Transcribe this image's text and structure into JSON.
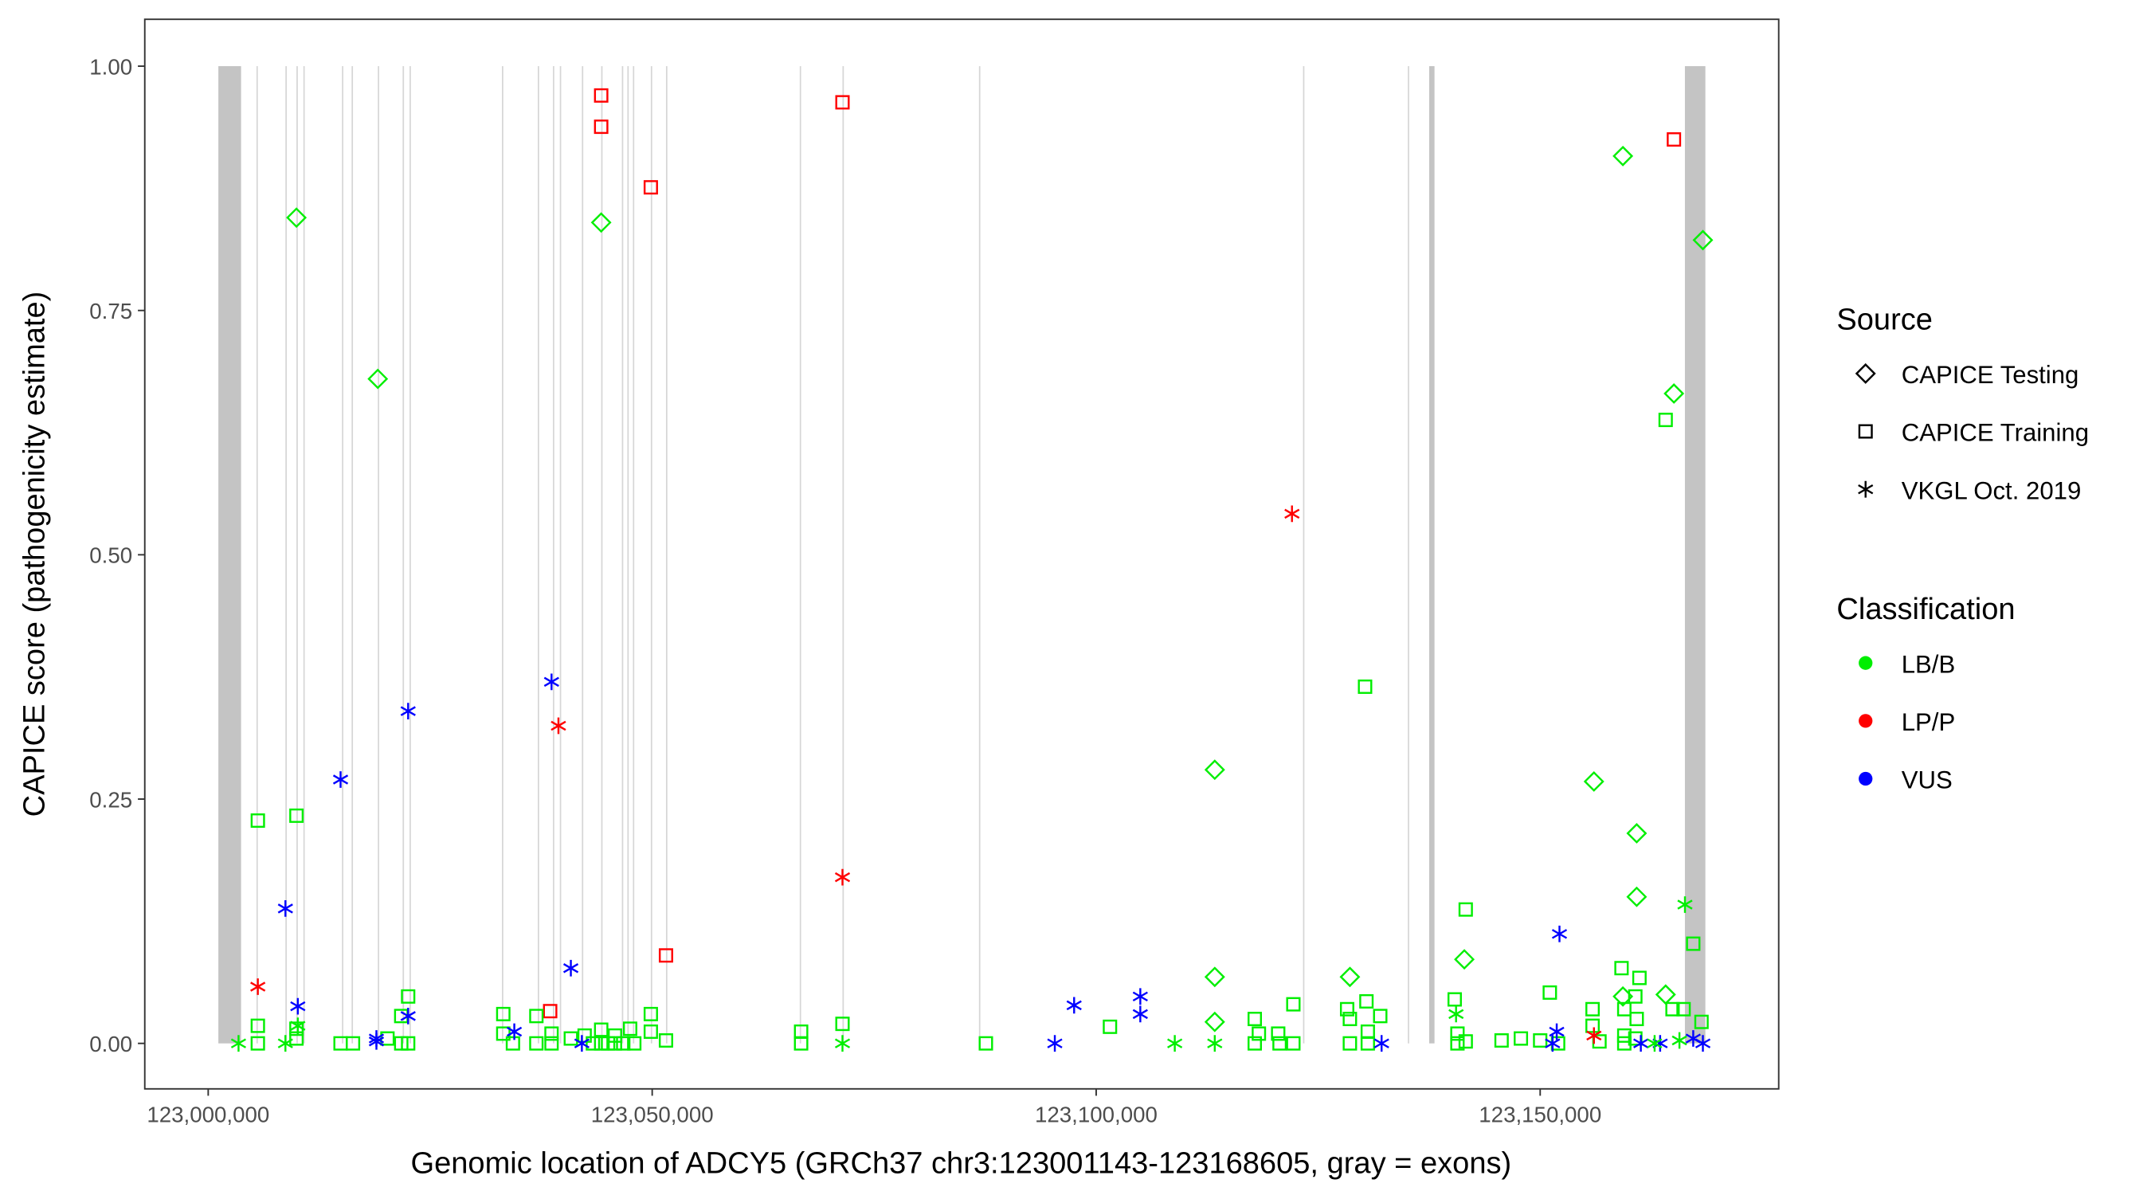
{
  "chart_data": {
    "type": "scatter",
    "xlabel": "Genomic location of ADCY5 (GRCh37 chr3:123001143-123168605, gray = exons)",
    "ylabel": "CAPICE score (pathogenicity estimate)",
    "xlim": [
      122993000,
      123176000
    ],
    "ylim": [
      -0.046,
      1.048
    ],
    "xticks": [
      123000000,
      123050000,
      123100000,
      123150000
    ],
    "xtick_labels": [
      "123,000,000",
      "123,050,000",
      "123,100,000",
      "123,150,000"
    ],
    "yticks": [
      0,
      0.25,
      0.5,
      0.75,
      1.0
    ],
    "ytick_labels": [
      "0.00",
      "0.25",
      "0.50",
      "0.75",
      "1.00"
    ],
    "grid": false,
    "legend": {
      "placement": "right",
      "source_title": "Source",
      "sources": [
        {
          "label": "CAPICE Testing",
          "shape": "diamond"
        },
        {
          "label": "CAPICE Training",
          "shape": "square"
        },
        {
          "label": "VKGL Oct. 2019",
          "shape": "asterisk"
        }
      ],
      "class_title": "Classification",
      "classes": [
        {
          "label": "LB/B",
          "color": "#00EE00"
        },
        {
          "label": "LP/P",
          "color": "#FF0000"
        },
        {
          "label": "VUS",
          "color": "#0000FF"
        }
      ]
    },
    "exon_color": "#C4C4C4",
    "exons": [
      [
        123001143,
        123003700
      ],
      [
        123005435,
        123005550
      ],
      [
        123008696,
        123008800
      ],
      [
        123009938,
        123010040
      ],
      [
        123010714,
        123010820
      ],
      [
        123015062,
        123015160
      ],
      [
        123016149,
        123016250
      ],
      [
        123019099,
        123019200
      ],
      [
        123021894,
        123022000
      ],
      [
        123022671,
        123022780
      ],
      [
        123033075,
        123033180
      ],
      [
        123037112,
        123037220
      ],
      [
        123038820,
        123038930
      ],
      [
        123039596,
        123039700
      ],
      [
        123042081,
        123042190
      ],
      [
        123044255,
        123044360
      ],
      [
        123046584,
        123046690
      ],
      [
        123047205,
        123047310
      ],
      [
        123047826,
        123047930
      ],
      [
        123049845,
        123049950
      ],
      [
        123051553,
        123051660
      ],
      [
        123066615,
        123066720
      ],
      [
        123071429,
        123071530
      ],
      [
        123086801,
        123086900
      ],
      [
        123123292,
        123123400
      ],
      [
        123135094,
        123135200
      ],
      [
        123137500,
        123138100
      ],
      [
        123166300,
        123168605
      ]
    ],
    "points_columns": [
      "position",
      "score",
      "source_index",
      "class_index"
    ],
    "points": [
      [
        123009938,
        0.845,
        0,
        0
      ],
      [
        123044255,
        0.84,
        0,
        0
      ],
      [
        123019099,
        0.68,
        0,
        0
      ],
      [
        123113354,
        0.28,
        0,
        0
      ],
      [
        123113354,
        0.068,
        0,
        0
      ],
      [
        123113354,
        0.022,
        0,
        0
      ],
      [
        123128572,
        0.068,
        0,
        0
      ],
      [
        123141460,
        0.086,
        0,
        0
      ],
      [
        123156056,
        0.268,
        0,
        0
      ],
      [
        123159317,
        0.908,
        0,
        0
      ],
      [
        123160870,
        0.215,
        0,
        0
      ],
      [
        123160870,
        0.15,
        0,
        0
      ],
      [
        123165063,
        0.665,
        0,
        0
      ],
      [
        123168324,
        0.822,
        0,
        0
      ],
      [
        123164131,
        0.05,
        0,
        0
      ],
      [
        123159317,
        0.048,
        0,
        0
      ],
      [
        123044255,
        0.97,
        1,
        1
      ],
      [
        123044255,
        0.938,
        1,
        1
      ],
      [
        123071429,
        0.963,
        1,
        1
      ],
      [
        123049845,
        0.876,
        1,
        1
      ],
      [
        123051553,
        0.09,
        1,
        1
      ],
      [
        123038509,
        0.033,
        1,
        1
      ],
      [
        123165063,
        0.925,
        1,
        1
      ],
      [
        123005590,
        0.228,
        1,
        0
      ],
      [
        123009938,
        0.233,
        1,
        0
      ],
      [
        123005590,
        0.018,
        1,
        0
      ],
      [
        123005590,
        0.0,
        1,
        0
      ],
      [
        123009938,
        0.005,
        1,
        0
      ],
      [
        123009938,
        0.015,
        1,
        0
      ],
      [
        123014907,
        0.0,
        1,
        0
      ],
      [
        123016304,
        0.0,
        1,
        0
      ],
      [
        123022516,
        0.048,
        1,
        0
      ],
      [
        123021739,
        0.028,
        1,
        0
      ],
      [
        123020186,
        0.005,
        1,
        0
      ],
      [
        123021739,
        0.0,
        1,
        0
      ],
      [
        123022516,
        0.0,
        1,
        0
      ],
      [
        123033230,
        0.03,
        1,
        0
      ],
      [
        123033230,
        0.01,
        1,
        0
      ],
      [
        123034317,
        0.0,
        1,
        0
      ],
      [
        123036957,
        0.028,
        1,
        0
      ],
      [
        123036957,
        0.0,
        1,
        0
      ],
      [
        123038665,
        0.01,
        1,
        0
      ],
      [
        123038665,
        0.0,
        1,
        0
      ],
      [
        123040839,
        0.005,
        1,
        0
      ],
      [
        123042391,
        0.008,
        1,
        0
      ],
      [
        123043323,
        0.0,
        1,
        0
      ],
      [
        123044255,
        0.014,
        1,
        0
      ],
      [
        123044255,
        0.0,
        1,
        0
      ],
      [
        123045031,
        0.0,
        1,
        0
      ],
      [
        123045808,
        0.008,
        1,
        0
      ],
      [
        123045808,
        0.0,
        1,
        0
      ],
      [
        123046739,
        0.0,
        1,
        0
      ],
      [
        123047516,
        0.015,
        1,
        0
      ],
      [
        123047982,
        0.0,
        1,
        0
      ],
      [
        123049845,
        0.03,
        1,
        0
      ],
      [
        123049845,
        0.012,
        1,
        0
      ],
      [
        123051553,
        0.003,
        1,
        0
      ],
      [
        123066770,
        0.012,
        1,
        0
      ],
      [
        123066770,
        0.0,
        1,
        0
      ],
      [
        123071429,
        0.02,
        1,
        0
      ],
      [
        123087578,
        0.0,
        1,
        0
      ],
      [
        123101553,
        0.017,
        1,
        0
      ],
      [
        123117858,
        0.025,
        1,
        0
      ],
      [
        123117858,
        0.0,
        1,
        0
      ],
      [
        123118323,
        0.01,
        1,
        0
      ],
      [
        123120497,
        0.01,
        1,
        0
      ],
      [
        123122205,
        0.04,
        1,
        0
      ],
      [
        123122205,
        0.0,
        1,
        0
      ],
      [
        123120653,
        0.0,
        1,
        0
      ],
      [
        123128261,
        0.035,
        1,
        0
      ],
      [
        123128572,
        0.025,
        1,
        0
      ],
      [
        123128572,
        0.0,
        1,
        0
      ],
      [
        123130280,
        0.365,
        1,
        0
      ],
      [
        123130435,
        0.043,
        1,
        0
      ],
      [
        123131988,
        0.028,
        1,
        0
      ],
      [
        123130590,
        0.012,
        1,
        0
      ],
      [
        123130590,
        0.0,
        1,
        0
      ],
      [
        123140373,
        0.045,
        1,
        0
      ],
      [
        123141615,
        0.137,
        1,
        0
      ],
      [
        123140684,
        0.01,
        1,
        0
      ],
      [
        123140684,
        0.0,
        1,
        0
      ],
      [
        123141615,
        0.002,
        1,
        0
      ],
      [
        123145653,
        0.003,
        1,
        0
      ],
      [
        123147827,
        0.005,
        1,
        0
      ],
      [
        123150000,
        0.003,
        1,
        0
      ],
      [
        123151087,
        0.052,
        1,
        0
      ],
      [
        123155901,
        0.035,
        1,
        0
      ],
      [
        123155901,
        0.018,
        1,
        0
      ],
      [
        123159162,
        0.077,
        1,
        0
      ],
      [
        123161181,
        0.067,
        1,
        0
      ],
      [
        123160715,
        0.048,
        1,
        0
      ],
      [
        123159473,
        0.035,
        1,
        0
      ],
      [
        123160870,
        0.025,
        1,
        0
      ],
      [
        123164131,
        0.638,
        1,
        0
      ],
      [
        123167237,
        0.102,
        1,
        0
      ],
      [
        123164907,
        0.035,
        1,
        0
      ],
      [
        123166150,
        0.035,
        1,
        0
      ],
      [
        123168168,
        0.022,
        1,
        0
      ],
      [
        123159473,
        0.008,
        1,
        0
      ],
      [
        123160715,
        0.005,
        1,
        0
      ],
      [
        123156678,
        0.002,
        1,
        0
      ],
      [
        123152019,
        0.0,
        1,
        0
      ],
      [
        123159473,
        0.0,
        1,
        0
      ],
      [
        123005590,
        0.058,
        2,
        1
      ],
      [
        123039441,
        0.325,
        2,
        1
      ],
      [
        123071429,
        0.17,
        2,
        1
      ],
      [
        123122050,
        0.542,
        2,
        1
      ],
      [
        123156056,
        0.008,
        2,
        1
      ],
      [
        123008696,
        0.138,
        2,
        2
      ],
      [
        123014907,
        0.27,
        2,
        2
      ],
      [
        123010093,
        0.038,
        2,
        2
      ],
      [
        123022516,
        0.34,
        2,
        2
      ],
      [
        123022516,
        0.028,
        2,
        2
      ],
      [
        123018944,
        0.005,
        2,
        2
      ],
      [
        123018944,
        0.002,
        2,
        2
      ],
      [
        123034472,
        0.012,
        2,
        2
      ],
      [
        123038665,
        0.37,
        2,
        2
      ],
      [
        123040839,
        0.077,
        2,
        2
      ],
      [
        123042081,
        0.0,
        2,
        2
      ],
      [
        123095342,
        0.0,
        2,
        2
      ],
      [
        123097516,
        0.039,
        2,
        2
      ],
      [
        123104969,
        0.048,
        2,
        2
      ],
      [
        123104969,
        0.03,
        2,
        2
      ],
      [
        123132143,
        0.0,
        2,
        2
      ],
      [
        123152174,
        0.112,
        2,
        2
      ],
      [
        123151864,
        0.012,
        2,
        2
      ],
      [
        123151398,
        0.0,
        2,
        2
      ],
      [
        123161336,
        0.0,
        2,
        2
      ],
      [
        123163510,
        0.0,
        2,
        2
      ],
      [
        123167237,
        0.005,
        2,
        2
      ],
      [
        123168324,
        0.0,
        2,
        2
      ],
      [
        123003416,
        0.0,
        2,
        0
      ],
      [
        123008696,
        0.0,
        2,
        0
      ],
      [
        123010093,
        0.018,
        2,
        0
      ],
      [
        123071429,
        0.0,
        2,
        0
      ],
      [
        123108851,
        0.0,
        2,
        0
      ],
      [
        123113354,
        0.0,
        2,
        0
      ],
      [
        123140528,
        0.03,
        2,
        0
      ],
      [
        123166305,
        0.142,
        2,
        0
      ],
      [
        123162889,
        0.0,
        2,
        0
      ],
      [
        123165684,
        0.003,
        2,
        0
      ]
    ]
  }
}
